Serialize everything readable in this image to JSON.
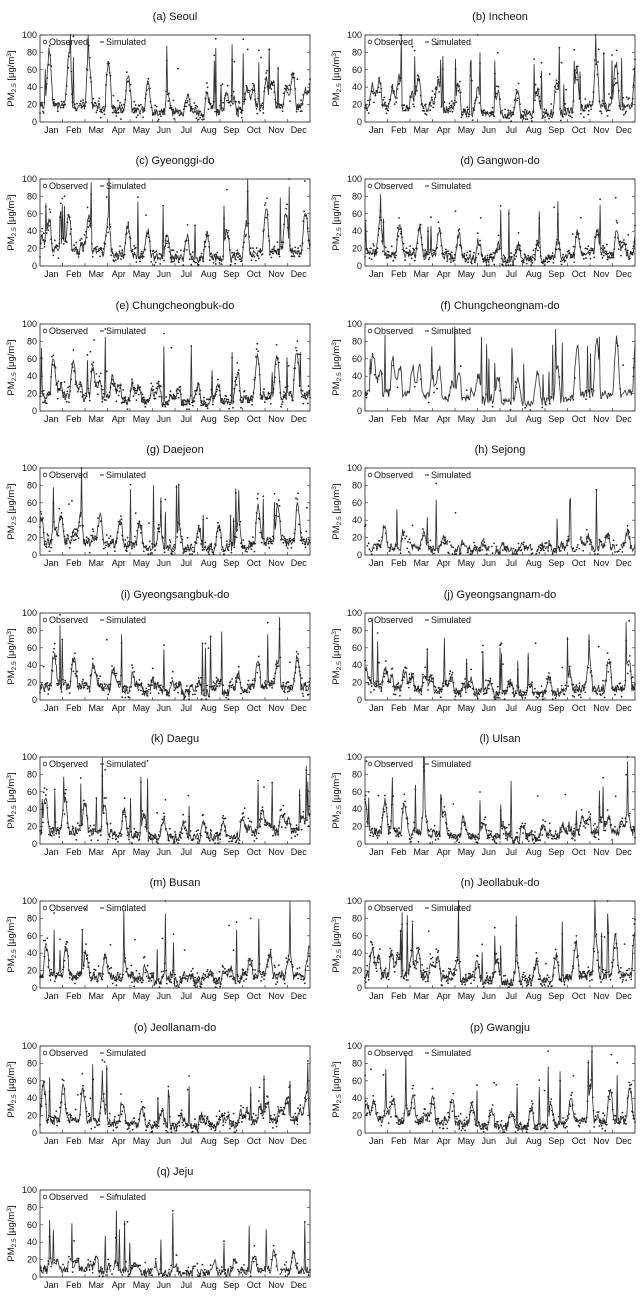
{
  "chart_data": {
    "type": "line",
    "x_tick_labels": [
      "Jan",
      "Feb",
      "Mar",
      "Apr",
      "May",
      "Jun",
      "Jul",
      "Aug",
      "Sep",
      "Oct",
      "Nov",
      "Dec"
    ],
    "y_ticks": [
      0,
      20,
      40,
      60,
      80,
      100
    ],
    "ylim": [
      0,
      100
    ],
    "xlim": [
      1,
      365
    ],
    "legend": {
      "observed": "Observed",
      "simulated": "Simulated",
      "placement": "top-left"
    },
    "series_styles": {
      "observed": "dots",
      "simulated": "line"
    },
    "ylabel_variants": {
      "a": {
        "pm": "PM",
        "sub": "2.5",
        "unit": " [μg/m",
        "sup": "3",
        "close": "]"
      },
      "b": {
        "pm": "PM",
        "sub": "2.5",
        "unit": " [µg/m",
        "sup": "3",
        "close": "]"
      }
    },
    "panels": [
      {
        "id": "a",
        "title": "(a) Seoul",
        "ylabel": "a",
        "seed": 11,
        "base": 32,
        "amp": 1.0,
        "obs": 0.9,
        "sim_density": 1.0
      },
      {
        "id": "b",
        "title": "(b) Incheon",
        "ylabel": "b",
        "seed": 23,
        "base": 30,
        "amp": 0.95,
        "obs": 0.9,
        "sim_density": 1.0
      },
      {
        "id": "c",
        "title": "(c) Gyeonggi-do",
        "ylabel": "a",
        "seed": 37,
        "base": 30,
        "amp": 0.9,
        "obs": 0.9,
        "sim_density": 1.0
      },
      {
        "id": "d",
        "title": "(d) Gangwon-do",
        "ylabel": "b",
        "seed": 41,
        "base": 24,
        "amp": 0.8,
        "obs": 1.0,
        "sim_density": 1.0
      },
      {
        "id": "e",
        "title": "(e) Chungcheongbuk-do",
        "ylabel": "a",
        "seed": 53,
        "base": 30,
        "amp": 0.95,
        "obs": 1.0,
        "sim_density": 1.0
      },
      {
        "id": "f",
        "title": "(f) Chungcheongnam-do",
        "ylabel": "b",
        "seed": 67,
        "base": 34,
        "amp": 1.05,
        "obs": 0.15,
        "sim_density": 1.0
      },
      {
        "id": "g",
        "title": "(g) Daejeon",
        "ylabel": "a",
        "seed": 71,
        "base": 26,
        "amp": 0.9,
        "obs": 0.9,
        "sim_density": 1.0
      },
      {
        "id": "h",
        "title": "(h) Sejong",
        "ylabel": "b",
        "seed": 83,
        "base": 14,
        "amp": 0.85,
        "obs": 0.55,
        "sim_density": 0.75
      },
      {
        "id": "i",
        "title": "(i) Gyeongsangbuk-do",
        "ylabel": "a",
        "seed": 97,
        "base": 26,
        "amp": 0.8,
        "obs": 0.9,
        "sim_density": 1.0
      },
      {
        "id": "j",
        "title": "(j) Gyeongsangnam-do",
        "ylabel": "b",
        "seed": 101,
        "base": 24,
        "amp": 0.75,
        "obs": 0.9,
        "sim_density": 1.0
      },
      {
        "id": "k",
        "title": "(k) Daegu",
        "ylabel": "a",
        "seed": 113,
        "base": 25,
        "amp": 0.8,
        "obs": 0.9,
        "sim_density": 1.0
      },
      {
        "id": "l",
        "title": "(l) Ulsan",
        "ylabel": "b",
        "seed": 127,
        "base": 24,
        "amp": 0.75,
        "obs": 0.9,
        "sim_density": 1.0
      },
      {
        "id": "m",
        "title": "(m) Busan",
        "ylabel": "b",
        "seed": 131,
        "base": 24,
        "amp": 0.75,
        "obs": 0.9,
        "sim_density": 1.0
      },
      {
        "id": "n",
        "title": "(n) Jeollabuk-do",
        "ylabel": "a",
        "seed": 149,
        "base": 26,
        "amp": 0.95,
        "obs": 1.0,
        "sim_density": 1.0
      },
      {
        "id": "o",
        "title": "(o) Jeollanam-do",
        "ylabel": "b",
        "seed": 151,
        "base": 25,
        "amp": 0.8,
        "obs": 0.9,
        "sim_density": 1.0
      },
      {
        "id": "p",
        "title": "(p) Gwangju",
        "ylabel": "b",
        "seed": 163,
        "base": 25,
        "amp": 0.85,
        "obs": 0.9,
        "sim_density": 1.0
      },
      {
        "id": "q",
        "title": "(q) Jeju",
        "ylabel": "b",
        "seed": 173,
        "base": 14,
        "amp": 0.8,
        "obs": 0.45,
        "sim_density": 0.8
      }
    ]
  }
}
